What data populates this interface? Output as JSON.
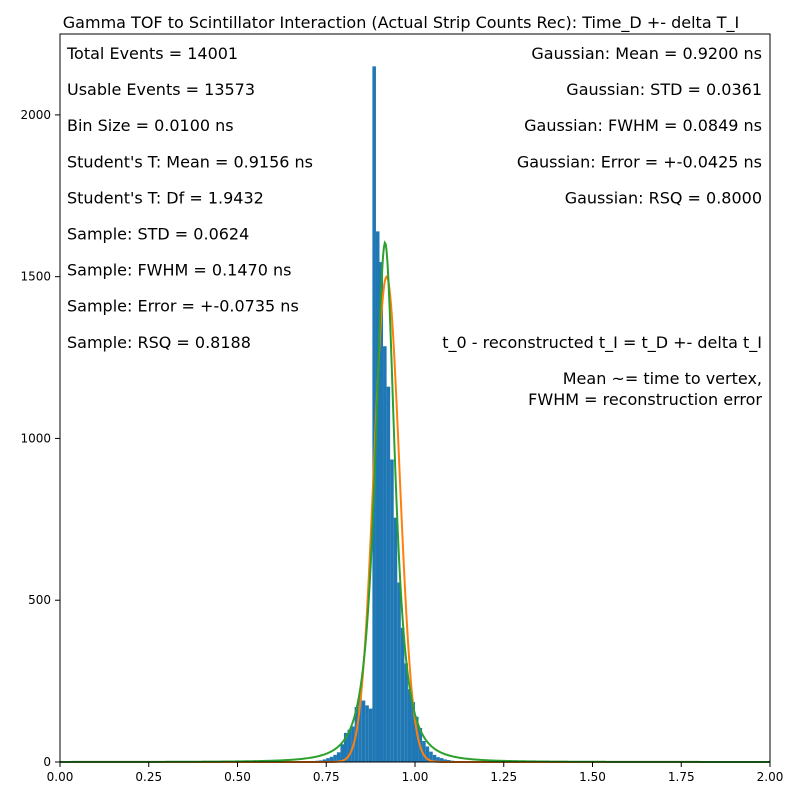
{
  "chart_data": {
    "type": "bar",
    "title": "Gamma TOF to Scintillator Interaction (Actual Strip Counts Rec): Time_D +- delta T_I",
    "xlabel": "",
    "ylabel": "",
    "xlim": [
      0,
      2.0
    ],
    "ylim": [
      0,
      2250
    ],
    "x_ticks": [
      "0.00",
      "0.25",
      "0.50",
      "0.75",
      "1.00",
      "1.25",
      "1.50",
      "1.75",
      "2.00"
    ],
    "y_ticks": [
      "0",
      "500",
      "1000",
      "1500",
      "2000"
    ],
    "grid": false,
    "bin_size": 0.01,
    "histogram": {
      "color": "#1f77b4",
      "bin_starts": [
        0.7,
        0.71,
        0.72,
        0.73,
        0.74,
        0.75,
        0.76,
        0.77,
        0.78,
        0.79,
        0.8,
        0.81,
        0.82,
        0.83,
        0.84,
        0.85,
        0.86,
        0.87,
        0.88,
        0.89,
        0.9,
        0.91,
        0.92,
        0.93,
        0.94,
        0.95,
        0.96,
        0.97,
        0.98,
        0.99,
        1.0,
        1.01,
        1.02,
        1.03,
        1.04,
        1.05,
        1.06,
        1.07,
        1.08,
        1.09,
        1.1,
        1.11,
        1.12
      ],
      "counts": [
        2,
        3,
        4,
        5,
        8,
        12,
        16,
        22,
        30,
        55,
        90,
        100,
        110,
        170,
        205,
        190,
        175,
        165,
        2150,
        1640,
        1545,
        1285,
        1160,
        935,
        755,
        555,
        415,
        305,
        225,
        185,
        140,
        105,
        65,
        48,
        32,
        22,
        15,
        12,
        8,
        6,
        4,
        3,
        2
      ]
    },
    "series": [
      {
        "type": "gaussian",
        "color": "#ff7f0e",
        "amplitude": 1500,
        "mean": 0.92,
        "std": 0.0361
      },
      {
        "type": "student_t",
        "color": "#2ca02c",
        "amplitude": 1605,
        "mean": 0.9156,
        "df": 1.9432,
        "scale": 0.03
      }
    ],
    "annotations_left": [
      "Total Events = 14001",
      "Usable Events = 13573",
      "Bin Size = 0.0100 ns",
      "Student's T: Mean = 0.9156 ns",
      "Student's T: Df = 1.9432",
      "Sample: STD = 0.0624",
      "Sample: FWHM = 0.1470 ns",
      "Sample: Error = +-0.0735 ns",
      "Sample: RSQ = 0.8188"
    ],
    "annotations_right": [
      "Gaussian: Mean = 0.9200 ns",
      "Gaussian: STD = 0.0361",
      "Gaussian: FWHM = 0.0849 ns",
      "Gaussian: Error = +-0.0425 ns",
      "Gaussian: RSQ = 0.8000"
    ],
    "annotations_right_lower": [
      "t_0 - reconstructed t_I = t_D +- delta t_I",
      "Mean ~= time to vertex,",
      "FWHM  = reconstruction error"
    ]
  }
}
